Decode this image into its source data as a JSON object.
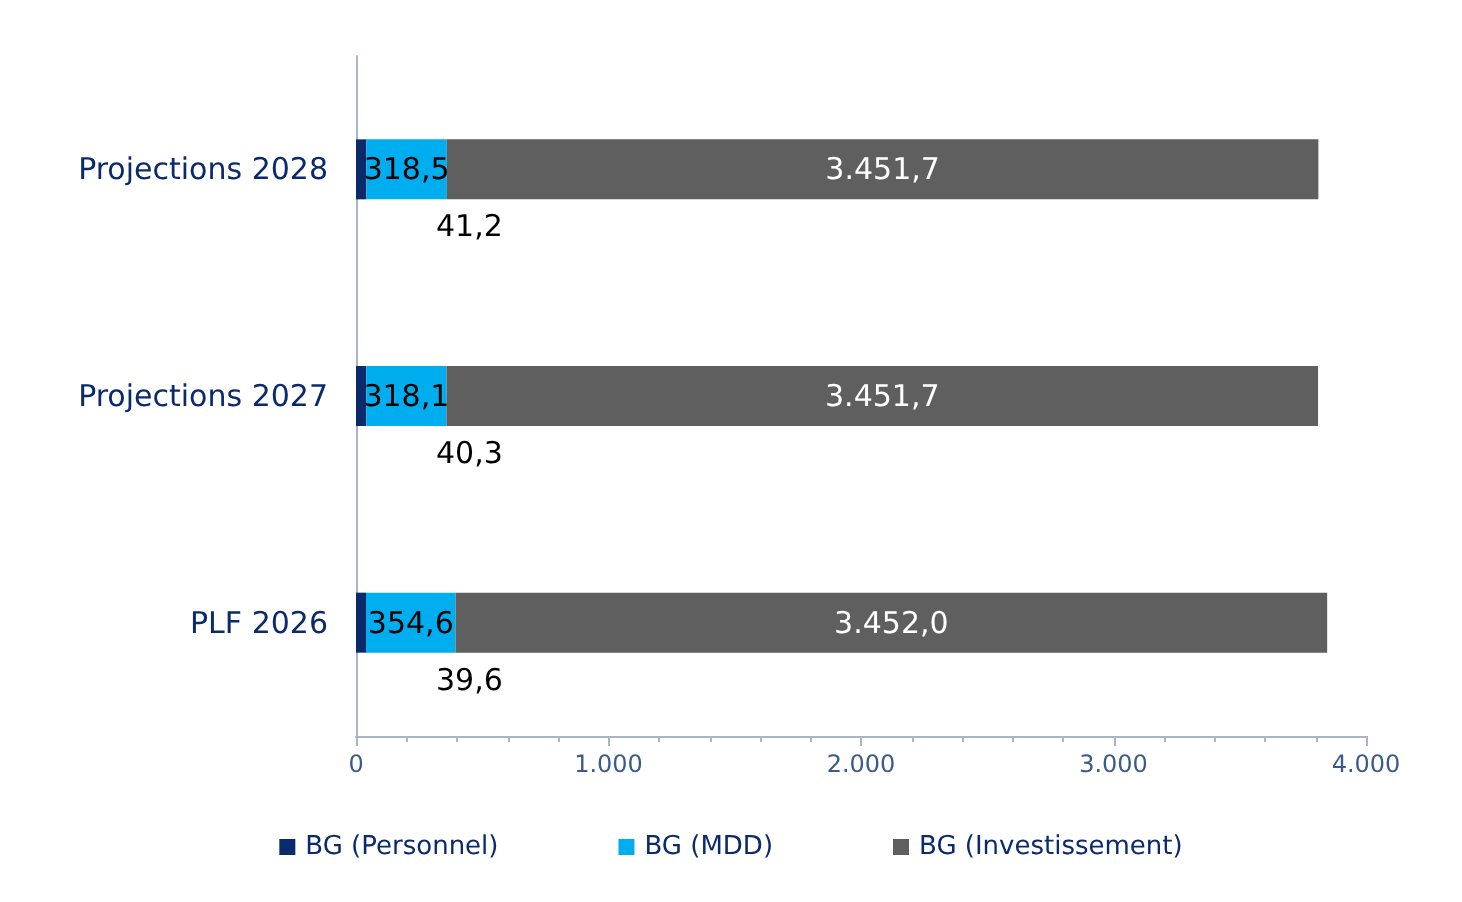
{
  "chart_data": {
    "type": "bar",
    "orientation": "horizontal",
    "stacked": true,
    "categories": [
      "Projections 2028",
      "Projections 2027",
      "PLF 2026"
    ],
    "series": [
      {
        "name": "BG (Personnel)",
        "color": "#0b2a6b",
        "values": [
          41.2,
          40.3,
          39.6
        ],
        "value_labels": [
          "41,2",
          "40,3",
          "39,6"
        ]
      },
      {
        "name": "BG (MDD)",
        "color": "#00aeef",
        "values": [
          318.5,
          318.1,
          354.6
        ],
        "value_labels": [
          "318,5",
          "318,1",
          "354,6"
        ]
      },
      {
        "name": "BG (Investissement)",
        "color": "#5f5f5f",
        "values": [
          3451.7,
          3451.7,
          3452.0
        ],
        "value_labels": [
          "3.451,7",
          "3.451,7",
          "3.452,0"
        ]
      }
    ],
    "xlim": [
      0,
      4000
    ],
    "xticks": [
      0,
      {
        "value": 1000,
        "label": "1.000"
      },
      {
        "value": 2000,
        "label": "2.000"
      },
      {
        "value": 3000,
        "label": "3.000"
      },
      {
        "value": 4000,
        "label": "4.000"
      }
    ],
    "grid": false,
    "legend": "bottom"
  }
}
